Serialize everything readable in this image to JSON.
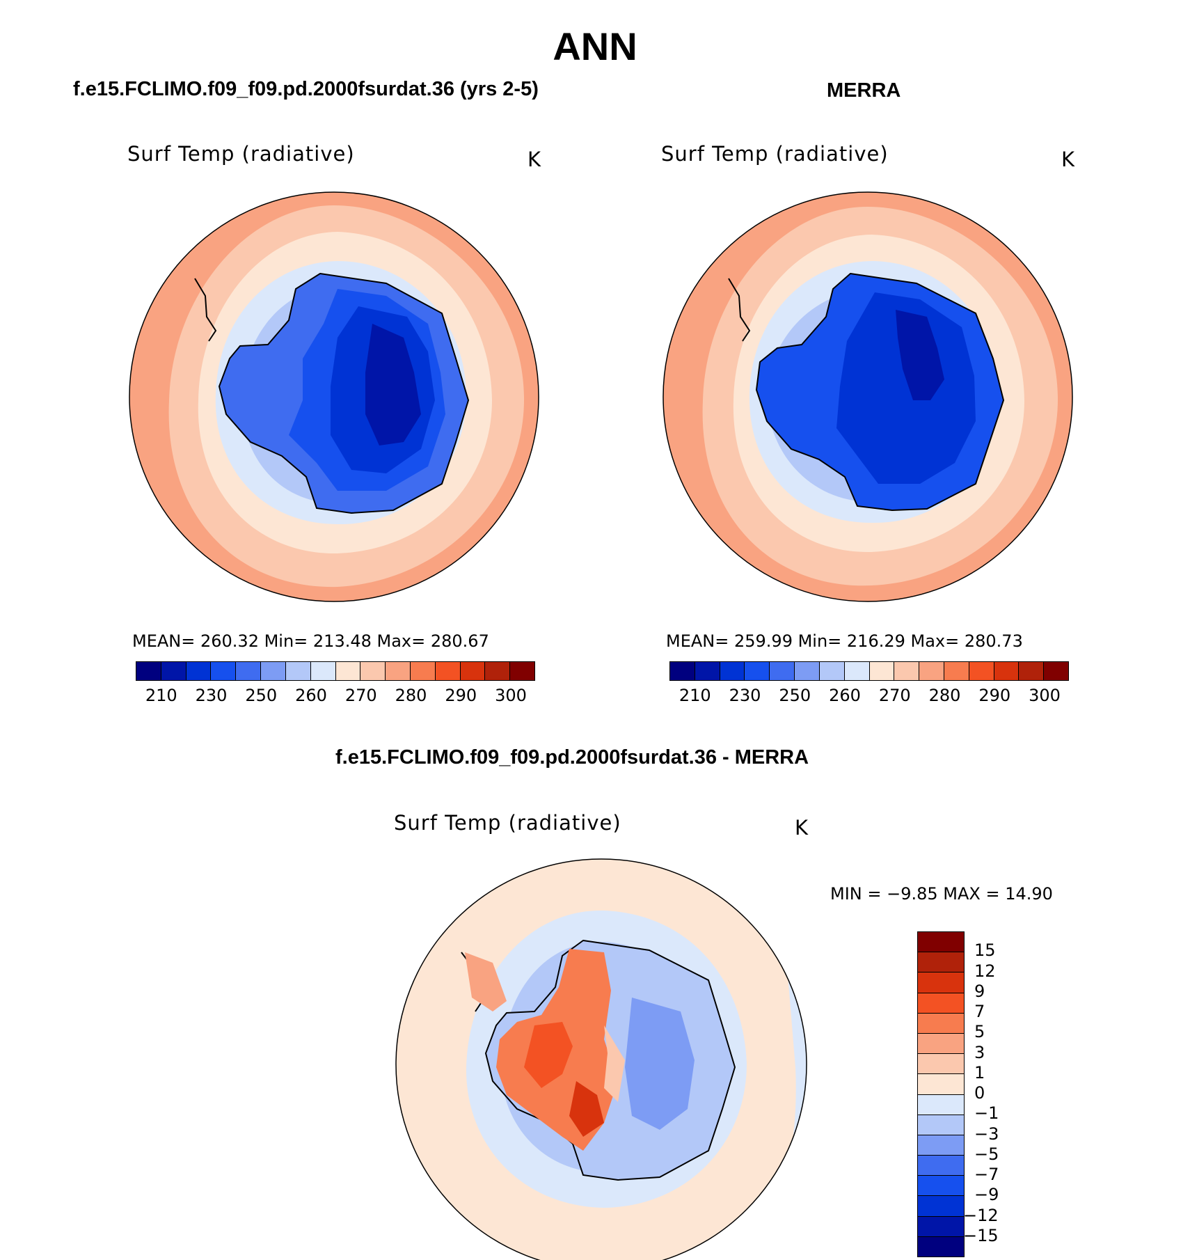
{
  "title": "ANN",
  "panels": [
    {
      "case_title": "f.e15.FCLIMO.f09_f09.pd.2000fsurdat.36 (yrs 2-5)",
      "variable": "Surf Temp (radiative)",
      "units": "K",
      "stats": "MEAN=  260.32    Min=  213.48    Max=  280.67",
      "colorbar": {
        "colors": [
          "#00007f",
          "#0015a8",
          "#0033d4",
          "#1650ee",
          "#3f6cf0",
          "#7d9cf4",
          "#b3c8f8",
          "#dbe8fb",
          "#fde6d4",
          "#fbc8ae",
          "#f9a381",
          "#f77c4f",
          "#f35223",
          "#d8330d",
          "#b0220a",
          "#800000"
        ],
        "labels": [
          "210",
          "230",
          "250",
          "260",
          "270",
          "280",
          "290",
          "300"
        ]
      }
    },
    {
      "case_title": "MERRA",
      "variable": "Surf Temp (radiative)",
      "units": "K",
      "stats": "MEAN=  259.99    Min=  216.29    Max=  280.73",
      "colorbar": {
        "colors": [
          "#00007f",
          "#0015a8",
          "#0033d4",
          "#1650ee",
          "#3f6cf0",
          "#7d9cf4",
          "#b3c8f8",
          "#dbe8fb",
          "#fde6d4",
          "#fbc8ae",
          "#f9a381",
          "#f77c4f",
          "#f35223",
          "#d8330d",
          "#b0220a",
          "#800000"
        ],
        "labels": [
          "210",
          "230",
          "250",
          "260",
          "270",
          "280",
          "290",
          "300"
        ]
      }
    }
  ],
  "diff_panel": {
    "case_title": "f.e15.FCLIMO.f09_f09.pd.2000fsurdat.36 - MERRA",
    "variable": "Surf Temp (radiative)",
    "units": "K",
    "stats": "MIN =    −9.85  MAX =    14.90",
    "colorbar": {
      "colors": [
        "#800000",
        "#b0220a",
        "#d8330d",
        "#f35223",
        "#f77c4f",
        "#f9a381",
        "#fbc8ae",
        "#fde6d4",
        "#dbe8fb",
        "#b3c8f8",
        "#7d9cf4",
        "#3f6cf0",
        "#1650ee",
        "#0033d4",
        "#0015a8",
        "#00007f"
      ],
      "labels": [
        "15",
        "12",
        "9",
        "7",
        "5",
        "3",
        "1",
        "0",
        "−1",
        "−3",
        "−5",
        "−7",
        "−9",
        "−12",
        "−15"
      ]
    }
  }
}
